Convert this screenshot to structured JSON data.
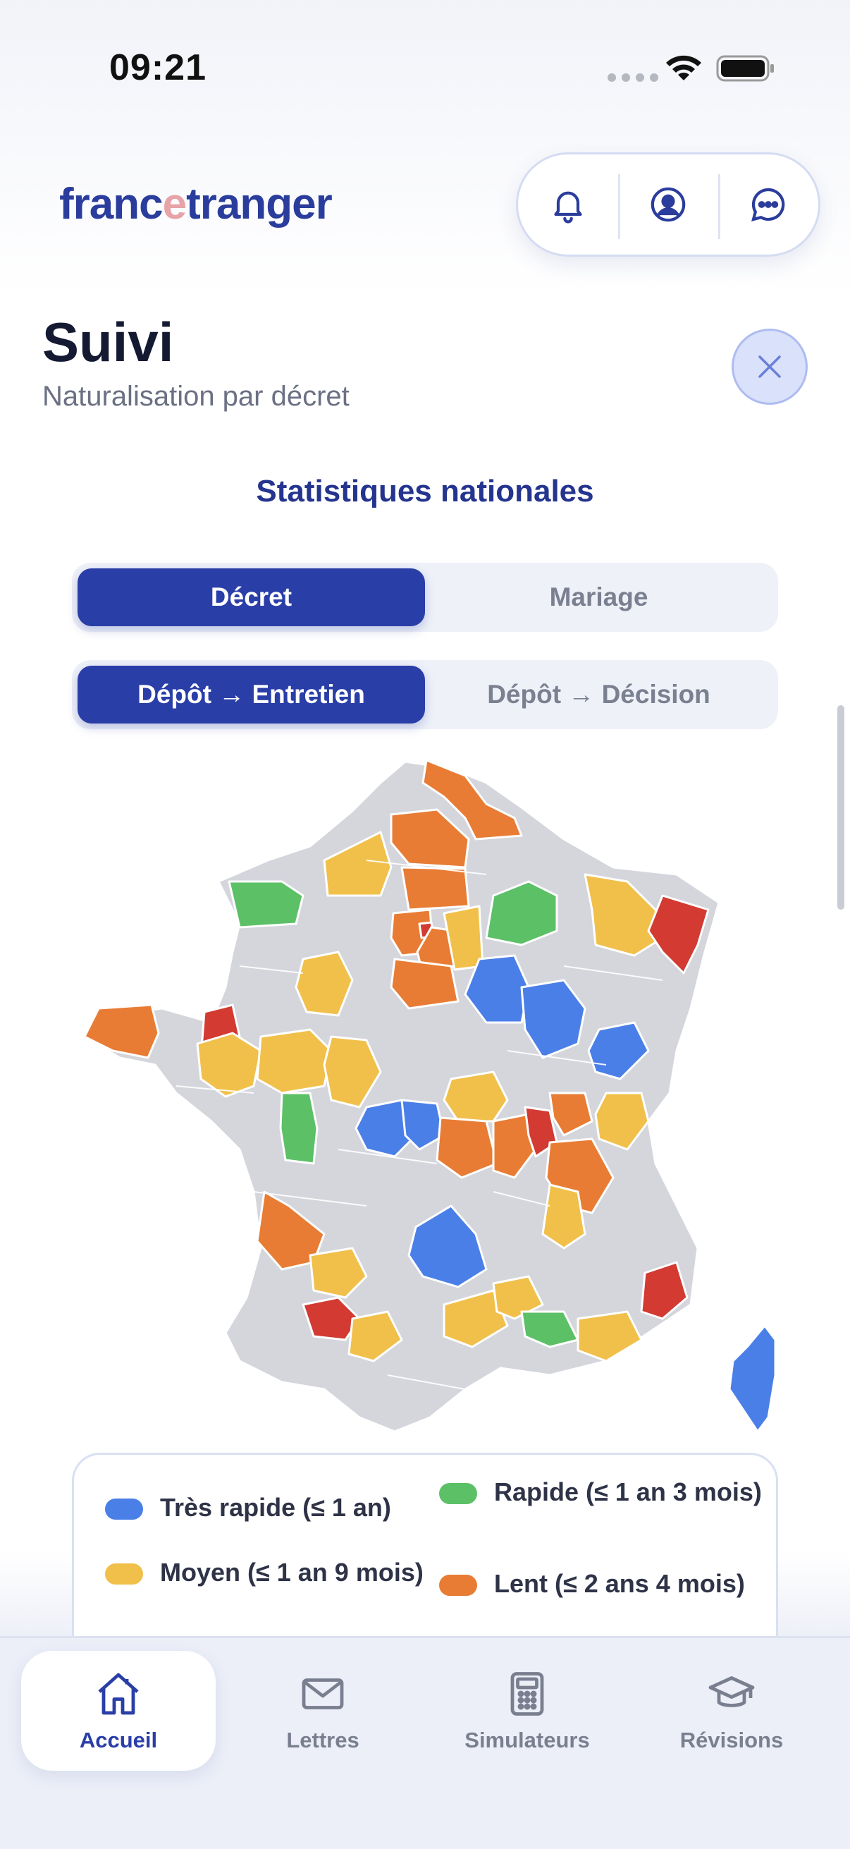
{
  "status_bar": {
    "time": "09:21"
  },
  "header": {
    "logo_part1": "franc",
    "logo_accent": "e",
    "logo_part2": "tranger",
    "icons": [
      "bell-icon",
      "user-icon",
      "chat-icon"
    ]
  },
  "page": {
    "title": "Suivi",
    "subtitle": "Naturalisation par décret",
    "section_title": "Statistiques nationales"
  },
  "procedure_tabs": {
    "options": [
      "Décret",
      "Mariage"
    ],
    "selected": "Décret"
  },
  "phase_tabs": {
    "options": [
      "Dépôt → Entretien",
      "Dépôt → Décision"
    ],
    "selected": "Dépôt → Entretien"
  },
  "map": {
    "categories": {
      "tres_rapide": "#4a7fe8",
      "rapide": "#5cc067",
      "moyen": "#f1c04b",
      "lent": "#e87c34",
      "tres_lent": "#d23a32",
      "no_data": "#d4d6dc"
    }
  },
  "legend": {
    "items": [
      {
        "label": "Très rapide (≤ 1 an)",
        "color": "#4a7fe8"
      },
      {
        "label": "Rapide (≤ 1 an 3 mois)",
        "color": "#5cc067"
      },
      {
        "label": "Moyen (≤ 1 an 9 mois)",
        "color": "#f1c04b"
      },
      {
        "label": "Lent (≤ 2 ans 4 mois)",
        "color": "#e87c34"
      }
    ]
  },
  "tab_bar": {
    "items": [
      {
        "label": "Accueil",
        "icon": "home-icon",
        "active": true
      },
      {
        "label": "Lettres",
        "icon": "mail-icon",
        "active": false
      },
      {
        "label": "Simulateurs",
        "icon": "calculator-icon",
        "active": false
      },
      {
        "label": "Révisions",
        "icon": "graduation-cap-icon",
        "active": false
      }
    ]
  }
}
